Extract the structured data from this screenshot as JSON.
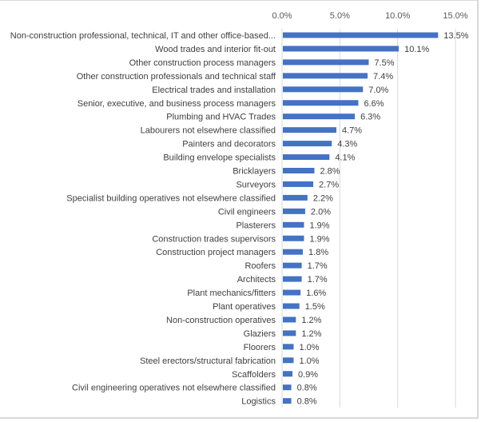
{
  "chart_data": {
    "type": "bar",
    "orientation": "horizontal",
    "title": "",
    "xlabel": "",
    "ylabel": "",
    "xlim": [
      0,
      15
    ],
    "x_ticks": [
      "0.0%",
      "5.0%",
      "10.0%",
      "15.0%"
    ],
    "x_tick_values": [
      0,
      5,
      10,
      15
    ],
    "axis_position": "top",
    "grid": true,
    "legend": "none",
    "bar_color": "#4472c4",
    "categories": [
      "Non-construction professional, technical, IT and other office-based...",
      "Wood trades and interior fit-out",
      "Other construction process managers",
      "Other construction professionals and technical staff",
      "Electrical trades and installation",
      "Senior, executive, and business process managers",
      "Plumbing and HVAC Trades",
      "Labourers not elsewhere classified",
      "Painters and decorators",
      "Building envelope specialists",
      "Bricklayers",
      "Surveyors",
      "Specialist building operatives not elsewhere classified",
      "Civil engineers",
      "Plasterers",
      "Construction trades supervisors",
      "Construction project managers",
      "Roofers",
      "Architects",
      "Plant mechanics/fitters",
      "Plant operatives",
      "Non-construction operatives",
      "Glaziers",
      "Floorers",
      "Steel erectors/structural fabrication",
      "Scaffolders",
      "Civil engineering operatives not elsewhere classified",
      "Logistics"
    ],
    "values": [
      13.5,
      10.1,
      7.5,
      7.4,
      7.0,
      6.6,
      6.3,
      4.7,
      4.3,
      4.1,
      2.8,
      2.7,
      2.2,
      2.0,
      1.9,
      1.9,
      1.8,
      1.7,
      1.7,
      1.6,
      1.5,
      1.2,
      1.2,
      1.0,
      1.0,
      0.9,
      0.8,
      0.8
    ],
    "data_labels": [
      "13.5%",
      "10.1%",
      "7.5%",
      "7.4%",
      "7.0%",
      "6.6%",
      "6.3%",
      "4.7%",
      "4.3%",
      "4.1%",
      "2.8%",
      "2.7%",
      "2.2%",
      "2.0%",
      "1.9%",
      "1.9%",
      "1.8%",
      "1.7%",
      "1.7%",
      "1.6%",
      "1.5%",
      "1.2%",
      "1.2%",
      "1.0%",
      "1.0%",
      "0.9%",
      "0.8%",
      "0.8%"
    ]
  }
}
